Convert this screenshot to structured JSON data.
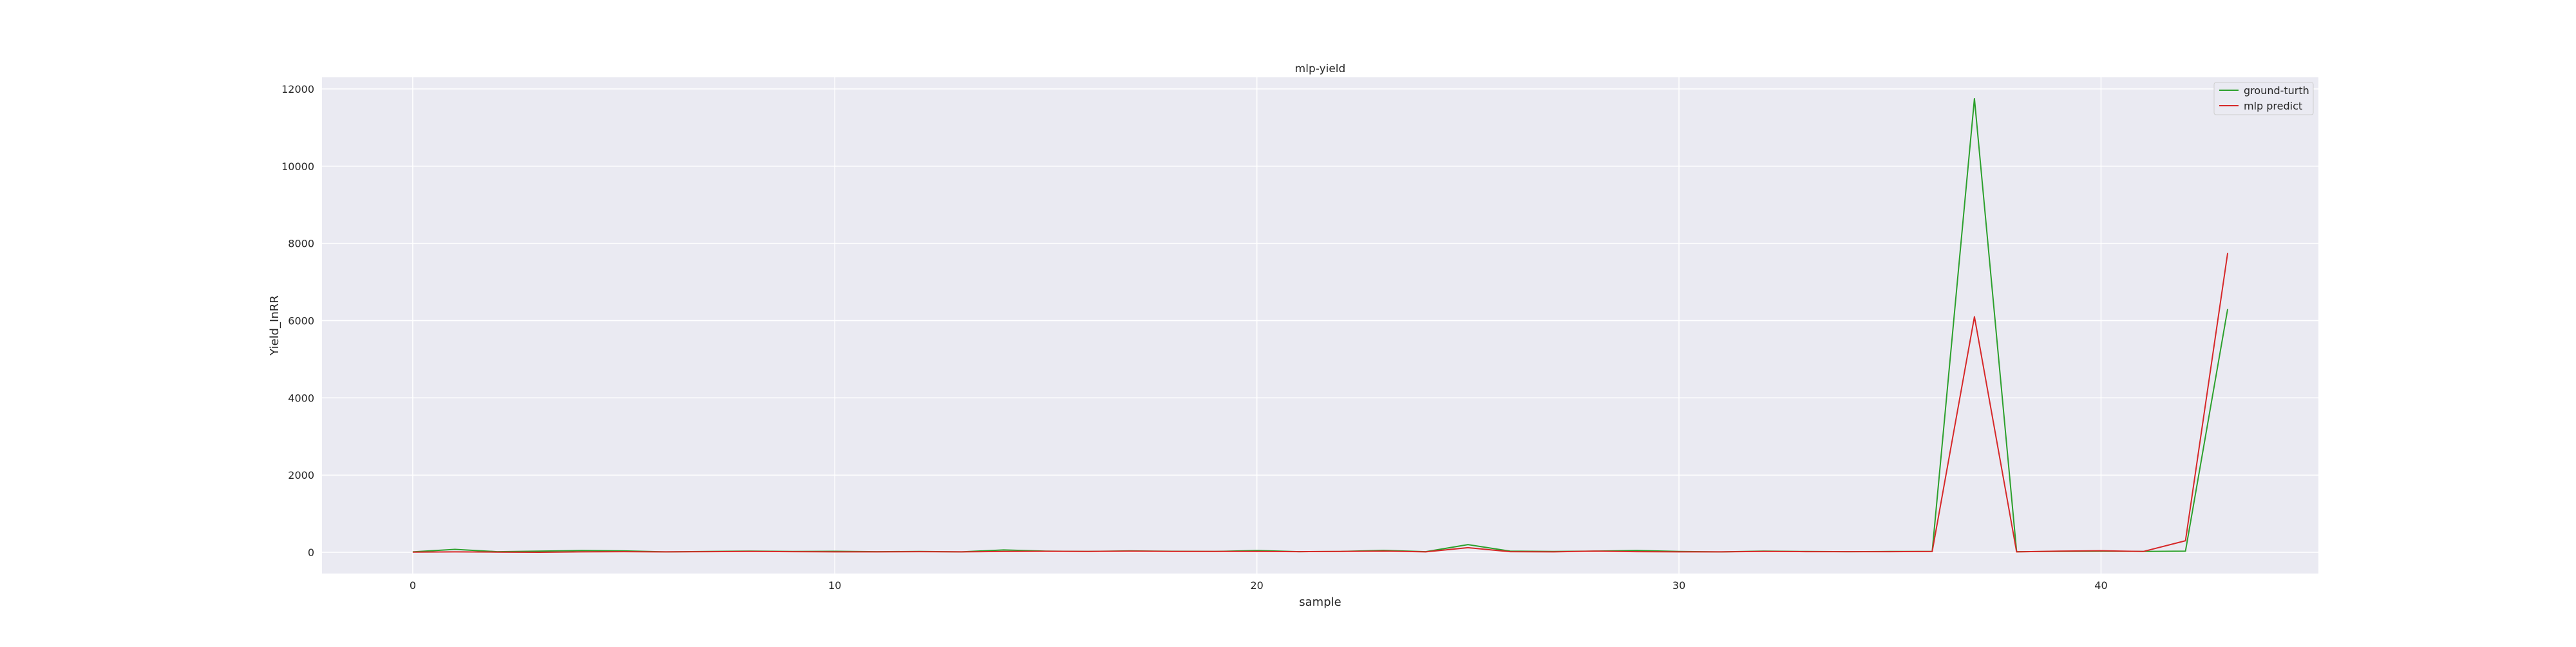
{
  "chart_data": {
    "type": "line",
    "title": "mlp-yield",
    "xlabel": "sample",
    "ylabel": "Yield_InRR",
    "xlim": [
      -2.15,
      45.15
    ],
    "ylim": [
      -550,
      12300
    ],
    "x_ticks": [
      0,
      10,
      20,
      30,
      40
    ],
    "y_ticks": [
      0,
      2000,
      4000,
      6000,
      8000,
      10000,
      12000
    ],
    "grid": true,
    "legend_position": "top-right",
    "x": [
      0,
      1,
      2,
      3,
      4,
      5,
      6,
      7,
      8,
      9,
      10,
      11,
      12,
      13,
      14,
      15,
      16,
      17,
      18,
      19,
      20,
      21,
      22,
      23,
      24,
      25,
      26,
      27,
      28,
      29,
      30,
      31,
      32,
      33,
      34,
      35,
      36,
      37,
      38,
      39,
      40,
      41,
      42,
      43
    ],
    "series": [
      {
        "name": "ground-turth",
        "color": "#2ca02c",
        "values": [
          10,
          75,
          15,
          30,
          45,
          35,
          10,
          20,
          30,
          20,
          25,
          15,
          20,
          10,
          60,
          30,
          20,
          35,
          25,
          20,
          45,
          15,
          20,
          50,
          15,
          200,
          30,
          20,
          30,
          45,
          20,
          10,
          30,
          20,
          15,
          20,
          20,
          11750,
          15,
          20,
          25,
          20,
          30,
          6300
        ]
      },
      {
        "name": "mlp predict",
        "color": "#d62728",
        "values": [
          5,
          10,
          5,
          0,
          10,
          15,
          10,
          15,
          20,
          15,
          10,
          10,
          15,
          10,
          20,
          25,
          20,
          30,
          20,
          20,
          20,
          15,
          20,
          30,
          10,
          120,
          15,
          10,
          30,
          15,
          10,
          10,
          20,
          15,
          15,
          15,
          20,
          6100,
          10,
          30,
          40,
          20,
          300,
          7750
        ]
      }
    ]
  }
}
